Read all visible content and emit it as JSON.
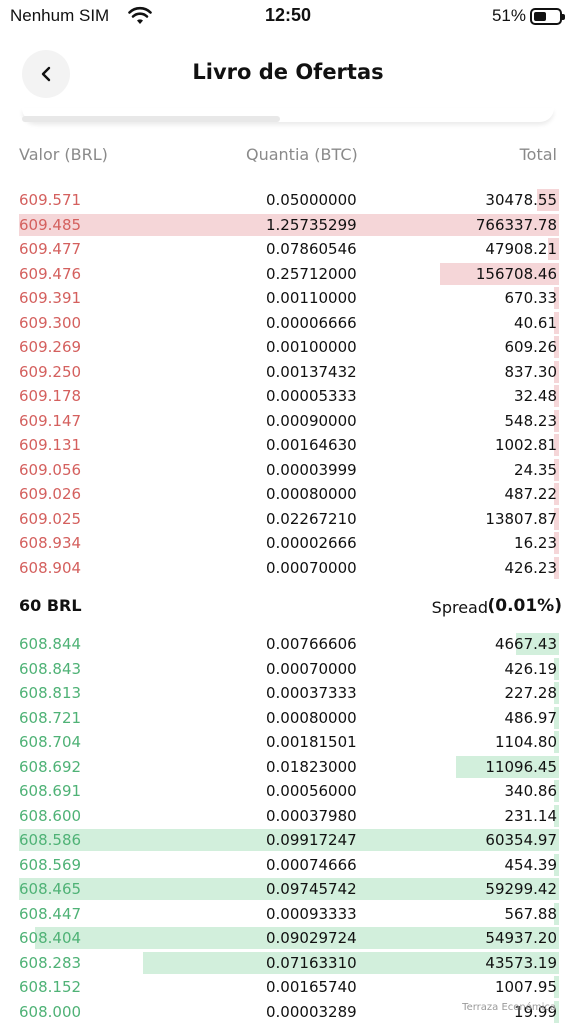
{
  "status_bar": {
    "carrier": "Nenhum SIM",
    "time": "12:50",
    "battery": "51%"
  },
  "header": {
    "title": "Livro de Ofertas",
    "back_icon": "chevron-left-icon"
  },
  "columns": {
    "price": "Valor (BRL)",
    "qty": "Quantia (BTC)",
    "total": "Total"
  },
  "colors": {
    "ask_price": "#d4605e",
    "ask_bar": "#f5d6d8",
    "bid_price": "#4fb276",
    "bid_bar": "#d2efdc"
  },
  "asks": [
    {
      "price": "609.571",
      "qty": "0.05000000",
      "total": "30478.55",
      "depth": 0.04
    },
    {
      "price": "609.485",
      "qty": "1.25735299",
      "total": "766337.78",
      "depth": 1.0
    },
    {
      "price": "609.477",
      "qty": "0.07860546",
      "total": "47908.21",
      "depth": 0.02
    },
    {
      "price": "609.476",
      "qty": "0.25712000",
      "total": "156708.46",
      "depth": 0.22
    },
    {
      "price": "609.391",
      "qty": "0.00110000",
      "total": "670.33",
      "depth": 0.01
    },
    {
      "price": "609.300",
      "qty": "0.00006666",
      "total": "40.61",
      "depth": 0.01
    },
    {
      "price": "609.269",
      "qty": "0.00100000",
      "total": "609.26",
      "depth": 0.01
    },
    {
      "price": "609.250",
      "qty": "0.00137432",
      "total": "837.30",
      "depth": 0.01
    },
    {
      "price": "609.178",
      "qty": "0.00005333",
      "total": "32.48",
      "depth": 0.01
    },
    {
      "price": "609.147",
      "qty": "0.00090000",
      "total": "548.23",
      "depth": 0.01
    },
    {
      "price": "609.131",
      "qty": "0.00164630",
      "total": "1002.81",
      "depth": 0.01
    },
    {
      "price": "609.056",
      "qty": "0.00003999",
      "total": "24.35",
      "depth": 0.01
    },
    {
      "price": "609.026",
      "qty": "0.00080000",
      "total": "487.22",
      "depth": 0.01
    },
    {
      "price": "609.025",
      "qty": "0.02267210",
      "total": "13807.87",
      "depth": 0.01
    },
    {
      "price": "608.934",
      "qty": "0.00002666",
      "total": "16.23",
      "depth": 0.01
    },
    {
      "price": "608.904",
      "qty": "0.00070000",
      "total": "426.23",
      "depth": 0.01
    }
  ],
  "spread": {
    "last": "60 BRL",
    "label": "Spread",
    "value": "(0.01%)"
  },
  "bids": [
    {
      "price": "608.844",
      "qty": "0.00766606",
      "total": "4667.43",
      "depth": 0.08
    },
    {
      "price": "608.843",
      "qty": "0.00070000",
      "total": "426.19",
      "depth": 0.01
    },
    {
      "price": "608.813",
      "qty": "0.00037333",
      "total": "227.28",
      "depth": 0.01
    },
    {
      "price": "608.721",
      "qty": "0.00080000",
      "total": "486.97",
      "depth": 0.01
    },
    {
      "price": "608.704",
      "qty": "0.00181501",
      "total": "1104.80",
      "depth": 0.01
    },
    {
      "price": "608.692",
      "qty": "0.01823000",
      "total": "11096.45",
      "depth": 0.19
    },
    {
      "price": "608.691",
      "qty": "0.00056000",
      "total": "340.86",
      "depth": 0.01
    },
    {
      "price": "608.600",
      "qty": "0.00037980",
      "total": "231.14",
      "depth": 0.01
    },
    {
      "price": "608.586",
      "qty": "0.09917247",
      "total": "60354.97",
      "depth": 1.0
    },
    {
      "price": "608.569",
      "qty": "0.00074666",
      "total": "454.39",
      "depth": 0.01
    },
    {
      "price": "608.465",
      "qty": "0.09745742",
      "total": "59299.42",
      "depth": 1.0
    },
    {
      "price": "608.447",
      "qty": "0.00093333",
      "total": "567.88",
      "depth": 0.01
    },
    {
      "price": "608.404",
      "qty": "0.09029724",
      "total": "54937.20",
      "depth": 0.97
    },
    {
      "price": "608.283",
      "qty": "0.07163310",
      "total": "43573.19",
      "depth": 0.77
    },
    {
      "price": "608.152",
      "qty": "0.00165740",
      "total": "1007.95",
      "depth": 0.01
    },
    {
      "price": "608.000",
      "qty": "0.00003289",
      "total": "19.99",
      "depth": 0.01
    }
  ],
  "watermark": "Terraza Económica"
}
